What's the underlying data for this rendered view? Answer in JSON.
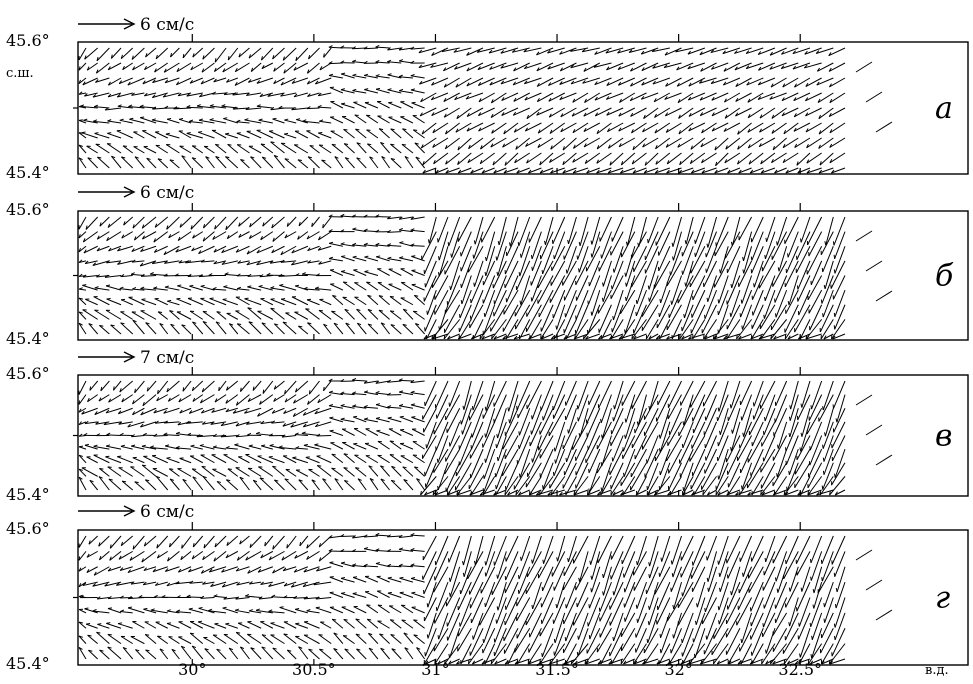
{
  "chart_data": {
    "type": "vector-field",
    "lat_unit": "с.ш.",
    "lon_unit": "в.д.",
    "x_ticks": [
      {
        "value": 30.0,
        "label": "30°"
      },
      {
        "value": 30.5,
        "label": "30.5°"
      },
      {
        "value": 31.0,
        "label": "31°"
      },
      {
        "value": 31.5,
        "label": "31.5°"
      },
      {
        "value": 32.0,
        "label": "32°"
      },
      {
        "value": 32.5,
        "label": "32.5°"
      }
    ],
    "xlim": [
      29.53,
      33.19
    ],
    "ylim": [
      45.4,
      45.6
    ],
    "y_tick_labels": {
      "top": "45.6°",
      "bottom": "45.4°"
    },
    "panels": [
      {
        "letter": "а",
        "scale_label": "6 см/с",
        "flow": "a"
      },
      {
        "letter": "б",
        "scale_label": "6 см/с",
        "flow": "b"
      },
      {
        "letter": "в",
        "scale_label": "7 см/с",
        "flow": "v"
      },
      {
        "letter": "г",
        "scale_label": "6 см/с",
        "flow": "g"
      }
    ]
  }
}
